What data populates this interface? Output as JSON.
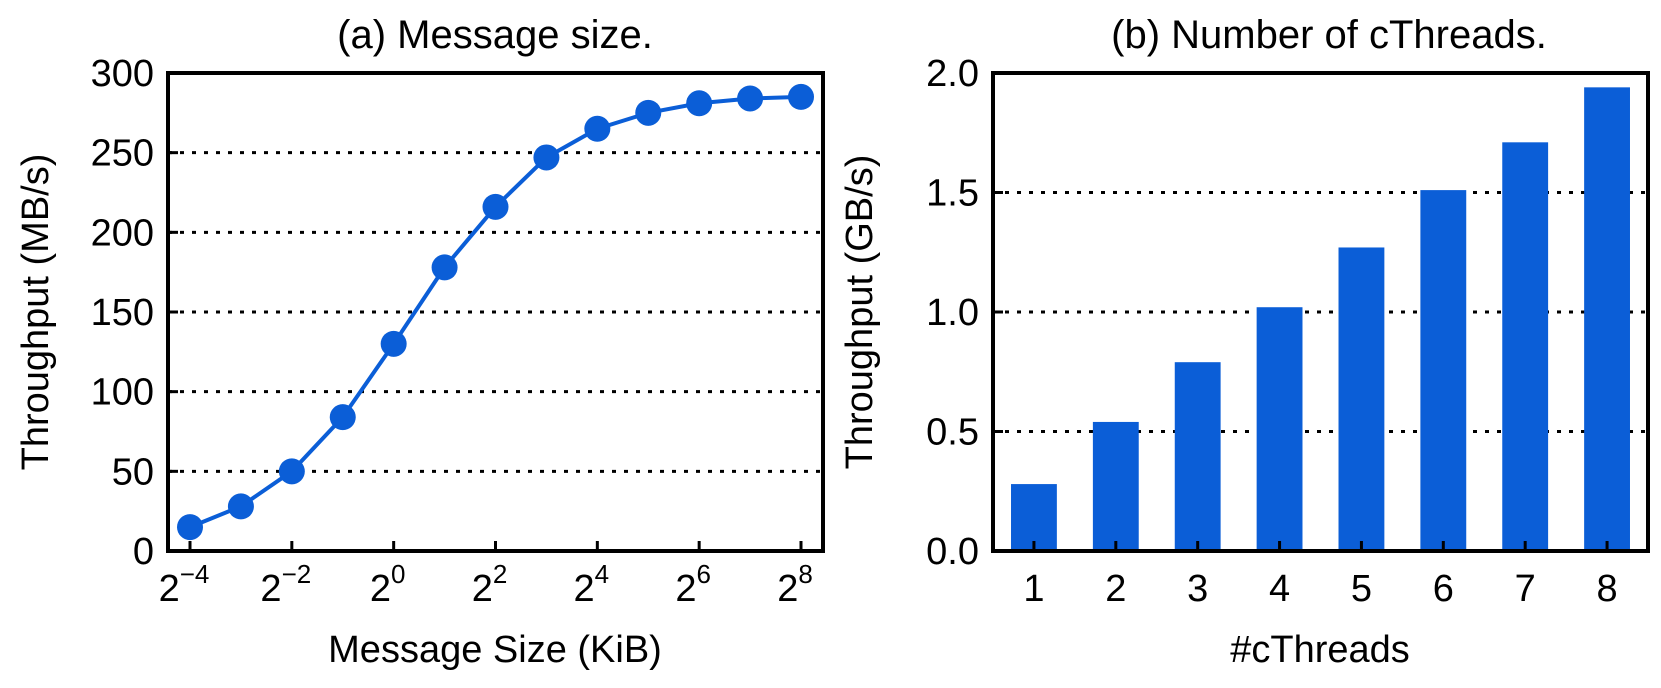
{
  "chart_data": [
    {
      "type": "line",
      "title": "(a) Message size.",
      "xlabel": "Message Size (KiB)",
      "ylabel": "Throughput (MB/s)",
      "x_exponents": [
        -4,
        -3,
        -2,
        -1,
        0,
        1,
        2,
        3,
        4,
        5,
        6,
        7,
        8
      ],
      "x_tick_base": "2",
      "x_tick_exponents": [
        "−4",
        "−2",
        "0",
        "2",
        "4",
        "6",
        "8"
      ],
      "y_ticks": [
        "0",
        "50",
        "100",
        "150",
        "200",
        "250",
        "300"
      ],
      "ylim": [
        0,
        300
      ],
      "grid_y": [
        50,
        100,
        150,
        200,
        250
      ],
      "series": [
        {
          "name": "Throughput",
          "values": [
            15,
            28,
            50,
            84,
            130,
            178,
            216,
            247,
            265,
            275,
            281,
            284,
            285
          ]
        }
      ],
      "color": "#0b5ed7"
    },
    {
      "type": "bar",
      "title": "(b) Number of cThreads.",
      "xlabel": "#cThreads",
      "ylabel": "Throughput (GB/s)",
      "categories": [
        "1",
        "2",
        "3",
        "4",
        "5",
        "6",
        "7",
        "8"
      ],
      "values": [
        0.28,
        0.54,
        0.79,
        1.02,
        1.27,
        1.51,
        1.71,
        1.94
      ],
      "y_ticks": [
        "0.0",
        "0.5",
        "1.0",
        "1.5",
        "2.0"
      ],
      "ylim": [
        0,
        2.0
      ],
      "grid_y": [
        0.5,
        1.0,
        1.5
      ],
      "color": "#0b5ed7"
    }
  ]
}
